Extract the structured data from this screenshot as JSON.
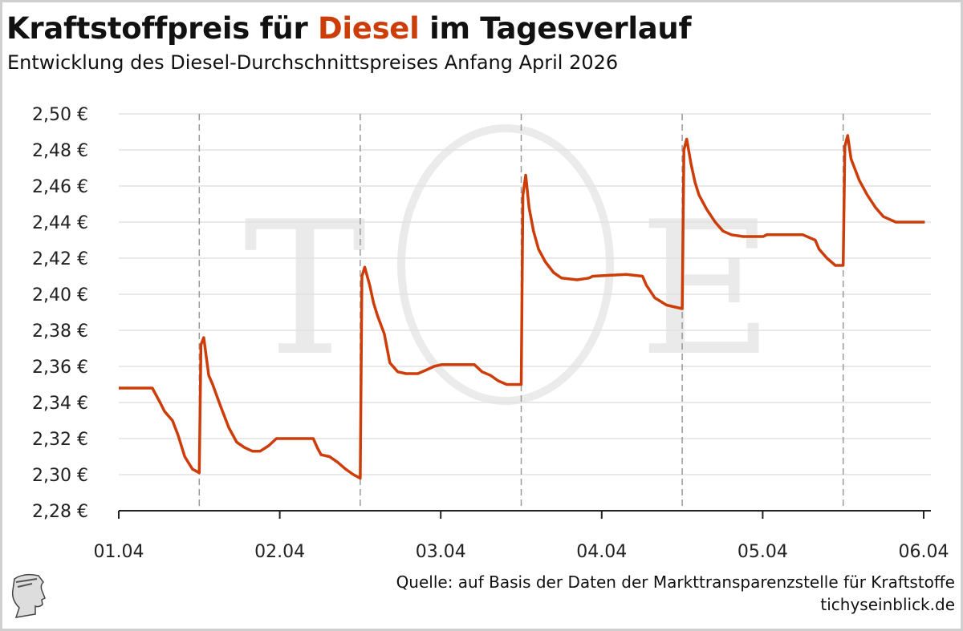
{
  "header": {
    "title_pre": "Kraftstoffpreis für ",
    "title_highlight": "Diesel",
    "title_post": " im Tagesverlauf",
    "subtitle": "Entwicklung des Diesel-Durchschnittspreises Anfang April 2026"
  },
  "footer": {
    "source": "Quelle: auf Basis der Daten der Markttransparenzstelle für Kraftstoffe",
    "site": "tichyseinblick.de",
    "logo": "TE"
  },
  "colors": {
    "accent": "#cc3d0a",
    "grid": "#e2e2e2",
    "noon_lines": "#999999"
  },
  "chart_data": {
    "type": "line",
    "title": "Kraftstoffpreis für Diesel im Tagesverlauf",
    "subtitle": "Entwicklung des Diesel-Durchschnittspreises Anfang April 2026",
    "xlabel": "",
    "ylabel": "",
    "x_ticks": [
      "01.04",
      "02.04",
      "03.04",
      "04.04",
      "05.04",
      "06.04"
    ],
    "x_range": [
      "2026-04-01 00:00",
      "2026-04-06 00:00"
    ],
    "y_ticks": [
      "2,28 €",
      "2,30 €",
      "2,32 €",
      "2,34 €",
      "2,36 €",
      "2,38 €",
      "2,40 €",
      "2,42 €",
      "2,44 €",
      "2,46 €",
      "2,48 €",
      "2,50 €"
    ],
    "ylim": [
      2.28,
      2.5
    ],
    "grid": "horizontal",
    "vertical_markers": [
      "2026-04-01 12:00",
      "2026-04-02 12:00",
      "2026-04-03 12:00",
      "2026-04-04 12:00",
      "2026-04-05 12:00"
    ],
    "series": [
      {
        "color": "#cc3d0a",
        "points": [
          [
            "2026-04-01 00:00",
            2.348
          ],
          [
            "2026-04-01 05:00",
            2.348
          ],
          [
            "2026-04-01 06:10",
            2.34
          ],
          [
            "2026-04-01 06:50",
            2.335
          ],
          [
            "2026-04-01 08:00",
            2.33
          ],
          [
            "2026-04-01 08:50",
            2.322
          ],
          [
            "2026-04-01 09:50",
            2.31
          ],
          [
            "2026-04-01 11:00",
            2.303
          ],
          [
            "2026-04-01 12:00",
            2.301
          ],
          [
            "2026-04-01 12:15",
            2.372
          ],
          [
            "2026-04-01 12:40",
            2.376
          ],
          [
            "2026-04-01 13:25",
            2.355
          ],
          [
            "2026-04-01 14:00",
            2.35
          ],
          [
            "2026-04-01 15:10",
            2.338
          ],
          [
            "2026-04-01 16:25",
            2.326
          ],
          [
            "2026-04-01 17:35",
            2.318
          ],
          [
            "2026-04-01 18:45",
            2.315
          ],
          [
            "2026-04-01 19:55",
            2.313
          ],
          [
            "2026-04-01 21:05",
            2.313
          ],
          [
            "2026-04-01 22:20",
            2.316
          ],
          [
            "2026-04-01 23:30",
            2.32
          ],
          [
            "2026-04-02 00:50",
            2.32
          ],
          [
            "2026-04-02 05:00",
            2.32
          ],
          [
            "2026-04-02 05:35",
            2.315
          ],
          [
            "2026-04-02 06:10",
            2.311
          ],
          [
            "2026-04-02 07:25",
            2.31
          ],
          [
            "2026-04-02 08:35",
            2.307
          ],
          [
            "2026-04-02 09:50",
            2.303
          ],
          [
            "2026-04-02 11:00",
            2.3
          ],
          [
            "2026-04-02 12:00",
            2.298
          ],
          [
            "2026-04-02 12:15",
            2.41
          ],
          [
            "2026-04-02 12:40",
            2.415
          ],
          [
            "2026-04-02 13:25",
            2.405
          ],
          [
            "2026-04-02 14:00",
            2.395
          ],
          [
            "2026-04-02 14:35",
            2.388
          ],
          [
            "2026-04-02 15:35",
            2.378
          ],
          [
            "2026-04-02 16:25",
            2.362
          ],
          [
            "2026-04-02 17:35",
            2.357
          ],
          [
            "2026-04-02 18:50",
            2.356
          ],
          [
            "2026-04-02 20:35",
            2.356
          ],
          [
            "2026-04-02 21:50",
            2.358
          ],
          [
            "2026-04-02 23:00",
            2.36
          ],
          [
            "2026-04-03 00:10",
            2.361
          ],
          [
            "2026-04-03 05:00",
            2.361
          ],
          [
            "2026-04-03 06:10",
            2.357
          ],
          [
            "2026-04-03 07:25",
            2.355
          ],
          [
            "2026-04-03 08:35",
            2.352
          ],
          [
            "2026-04-03 09:50",
            2.35
          ],
          [
            "2026-04-03 12:00",
            2.35
          ],
          [
            "2026-04-03 12:15",
            2.455
          ],
          [
            "2026-04-03 12:40",
            2.466
          ],
          [
            "2026-04-03 13:10",
            2.448
          ],
          [
            "2026-04-03 13:50",
            2.435
          ],
          [
            "2026-04-03 14:35",
            2.425
          ],
          [
            "2026-04-03 15:35",
            2.418
          ],
          [
            "2026-04-03 16:50",
            2.412
          ],
          [
            "2026-04-03 18:00",
            2.409
          ],
          [
            "2026-04-03 20:20",
            2.408
          ],
          [
            "2026-04-03 22:05",
            2.409
          ],
          [
            "2026-04-03 22:40",
            2.41
          ],
          [
            "2026-04-04 03:40",
            2.411
          ],
          [
            "2026-04-04 06:05",
            2.41
          ],
          [
            "2026-04-04 06:40",
            2.405
          ],
          [
            "2026-04-04 07:55",
            2.398
          ],
          [
            "2026-04-04 09:40",
            2.394
          ],
          [
            "2026-04-04 12:00",
            2.392
          ],
          [
            "2026-04-04 12:15",
            2.48
          ],
          [
            "2026-04-04 12:40",
            2.486
          ],
          [
            "2026-04-04 13:20",
            2.472
          ],
          [
            "2026-04-04 13:55",
            2.462
          ],
          [
            "2026-04-04 14:30",
            2.455
          ],
          [
            "2026-04-04 15:40",
            2.447
          ],
          [
            "2026-04-04 16:55",
            2.44
          ],
          [
            "2026-04-04 18:05",
            2.435
          ],
          [
            "2026-04-04 19:20",
            2.433
          ],
          [
            "2026-04-04 21:05",
            2.432
          ],
          [
            "2026-04-05 00:05",
            2.432
          ],
          [
            "2026-04-05 00:35",
            2.433
          ],
          [
            "2026-04-05 06:00",
            2.433
          ],
          [
            "2026-04-05 07:50",
            2.43
          ],
          [
            "2026-04-05 08:25",
            2.425
          ],
          [
            "2026-04-05 09:35",
            2.42
          ],
          [
            "2026-04-05 10:50",
            2.416
          ],
          [
            "2026-04-05 12:00",
            2.416
          ],
          [
            "2026-04-05 12:15",
            2.482
          ],
          [
            "2026-04-05 12:40",
            2.488
          ],
          [
            "2026-04-05 13:10",
            2.475
          ],
          [
            "2026-04-05 14:25",
            2.463
          ],
          [
            "2026-04-05 15:35",
            2.455
          ],
          [
            "2026-04-05 16:50",
            2.448
          ],
          [
            "2026-04-05 18:00",
            2.443
          ],
          [
            "2026-04-05 19:50",
            2.44
          ],
          [
            "2026-04-06 00:00",
            2.44
          ],
          [
            "2026-04-06 00:10",
            2.44
          ]
        ]
      }
    ]
  }
}
